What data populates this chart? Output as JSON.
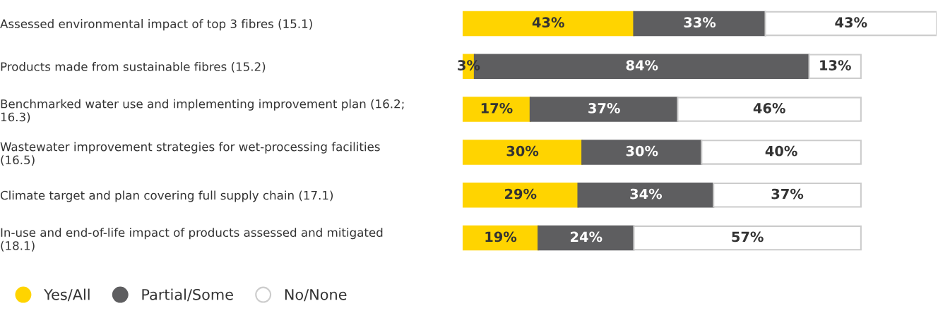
{
  "chart_data": {
    "type": "bar",
    "orientation": "horizontal",
    "stacked": true,
    "legend": "bottom left",
    "grid": false,
    "categories": [
      "Assessed environmental impact of top 3 fibres (15.1)",
      "Products made from sustainable fibres (15.2)",
      "Benchmarked water use and implementing improvement plan (16.2; 16.3)",
      "Wastewater improvement strategies for wet-processing facilities (16.5)",
      "Climate target and plan covering full supply chain (17.1)",
      "In-use and end-of-life impact of products assessed and mitigated (18.1)"
    ],
    "series": [
      {
        "name": "Yes/All",
        "color": "#ffd400",
        "values": [
          43,
          3,
          17,
          30,
          29,
          19
        ],
        "value_labels": [
          "43%",
          "3%",
          "17%",
          "30%",
          "29%",
          "19%"
        ]
      },
      {
        "name": "Partial/Some",
        "color": "#5e5e60",
        "values": [
          33,
          84,
          37,
          30,
          34,
          24
        ],
        "value_labels": [
          "33%",
          "84%",
          "37%",
          "30%",
          "34%",
          "24%"
        ]
      },
      {
        "name": "No/None",
        "color": "#ffffff",
        "values": [
          43,
          13,
          46,
          40,
          37,
          57
        ],
        "value_labels": [
          "43%",
          "13%",
          "46%",
          "40%",
          "37%",
          "57%"
        ]
      }
    ]
  }
}
